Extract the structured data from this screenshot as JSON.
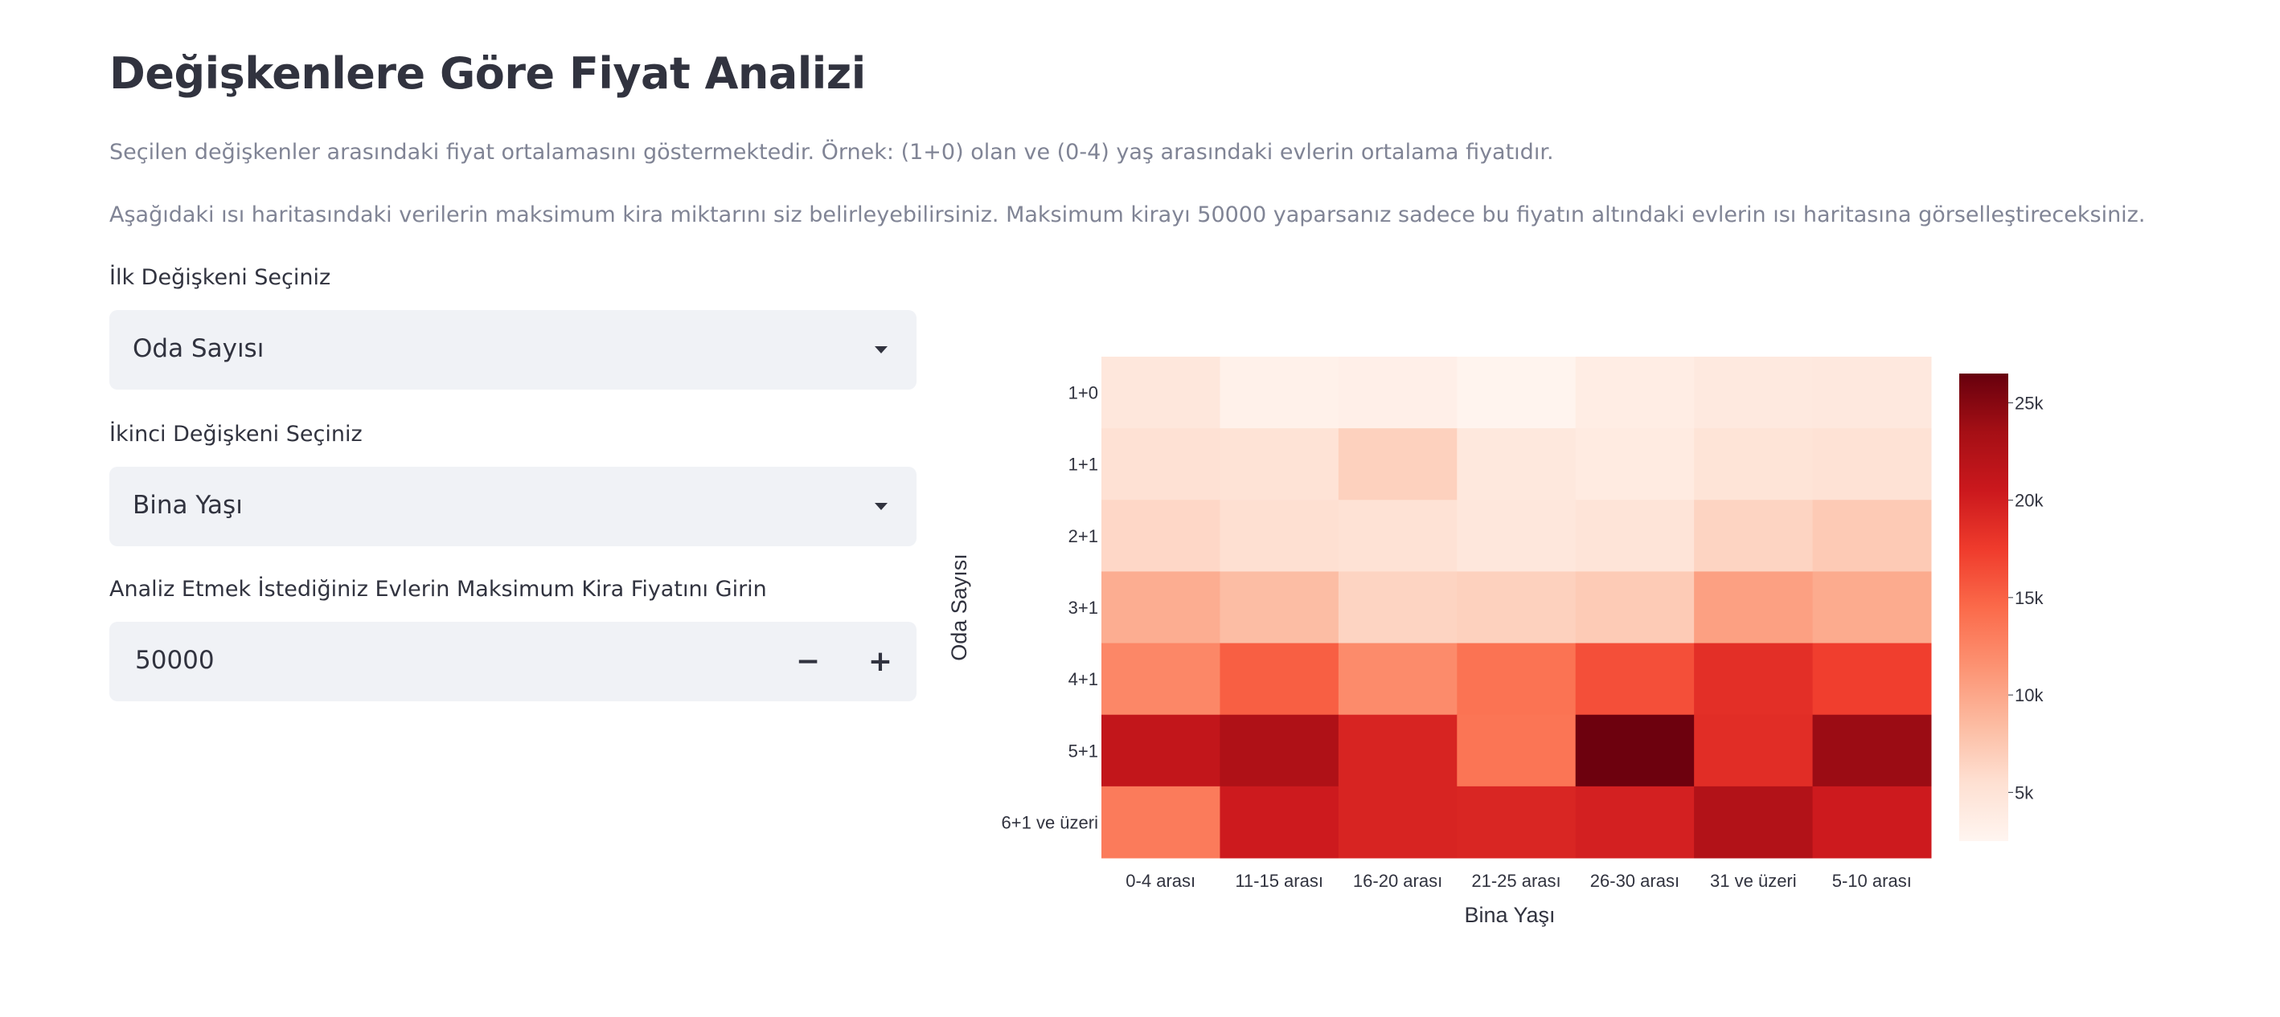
{
  "page": {
    "title": "Değişkenlere Göre Fiyat Analizi",
    "description1": "Seçilen değişkenler arasındaki fiyat ortalamasını göstermektedir. Örnek: (1+0) olan ve (0-4) yaş arasındaki evlerin ortalama fiyatıdır.",
    "description2": "Aşağıdaki ısı haritasındaki verilerin maksimum kira miktarını siz belirleyebilirsiniz. Maksimum kirayı 50000 yaparsanız sadece bu fiyatın altındaki evlerin ısı haritasına görselleştireceksiniz."
  },
  "controls": {
    "first_variable": {
      "label": "İlk Değişkeni Seçiniz",
      "value": "Oda Sayısı"
    },
    "second_variable": {
      "label": "İkinci Değişkeni Seçiniz",
      "value": "Bina Yaşı"
    },
    "max_rent": {
      "label": "Analiz Etmek İstediğiniz Evlerin Maksimum Kira Fiyatını Girin",
      "value": "50000",
      "minus": "−",
      "plus": "+"
    }
  },
  "chart_data": {
    "type": "heatmap",
    "xlabel": "Bina Yaşı",
    "ylabel": "Oda Sayısı",
    "x": [
      "0-4 arası",
      "11-15 arası",
      "16-20 arası",
      "21-25 arası",
      "26-30 arası",
      "31 ve üzeri",
      "5-10 arası"
    ],
    "y": [
      "1+0",
      "1+1",
      "2+1",
      "3+1",
      "4+1",
      "5+1",
      "6+1 ve üzeri"
    ],
    "z": [
      [
        4500,
        3100,
        3300,
        2700,
        3700,
        4200,
        4300
      ],
      [
        5300,
        5100,
        6700,
        4400,
        4000,
        5000,
        5200
      ],
      [
        6200,
        5500,
        5200,
        4500,
        4900,
        6500,
        7300
      ],
      [
        9500,
        8300,
        6500,
        6700,
        7200,
        10500,
        9700
      ],
      [
        12300,
        15200,
        12000,
        13800,
        16200,
        18500,
        17300
      ],
      [
        21200,
        22700,
        19500,
        13700,
        26200,
        18700,
        24000
      ],
      [
        13200,
        20300,
        19500,
        19300,
        19800,
        22500,
        20300
      ]
    ],
    "zmin": 2500,
    "zmax": 26500,
    "colorscale": "Reds",
    "colorbar_ticks": [
      {
        "value": 5000,
        "label": "5k"
      },
      {
        "value": 10000,
        "label": "10k"
      },
      {
        "value": 15000,
        "label": "15k"
      },
      {
        "value": 20000,
        "label": "20k"
      },
      {
        "value": 25000,
        "label": "25k"
      }
    ]
  }
}
